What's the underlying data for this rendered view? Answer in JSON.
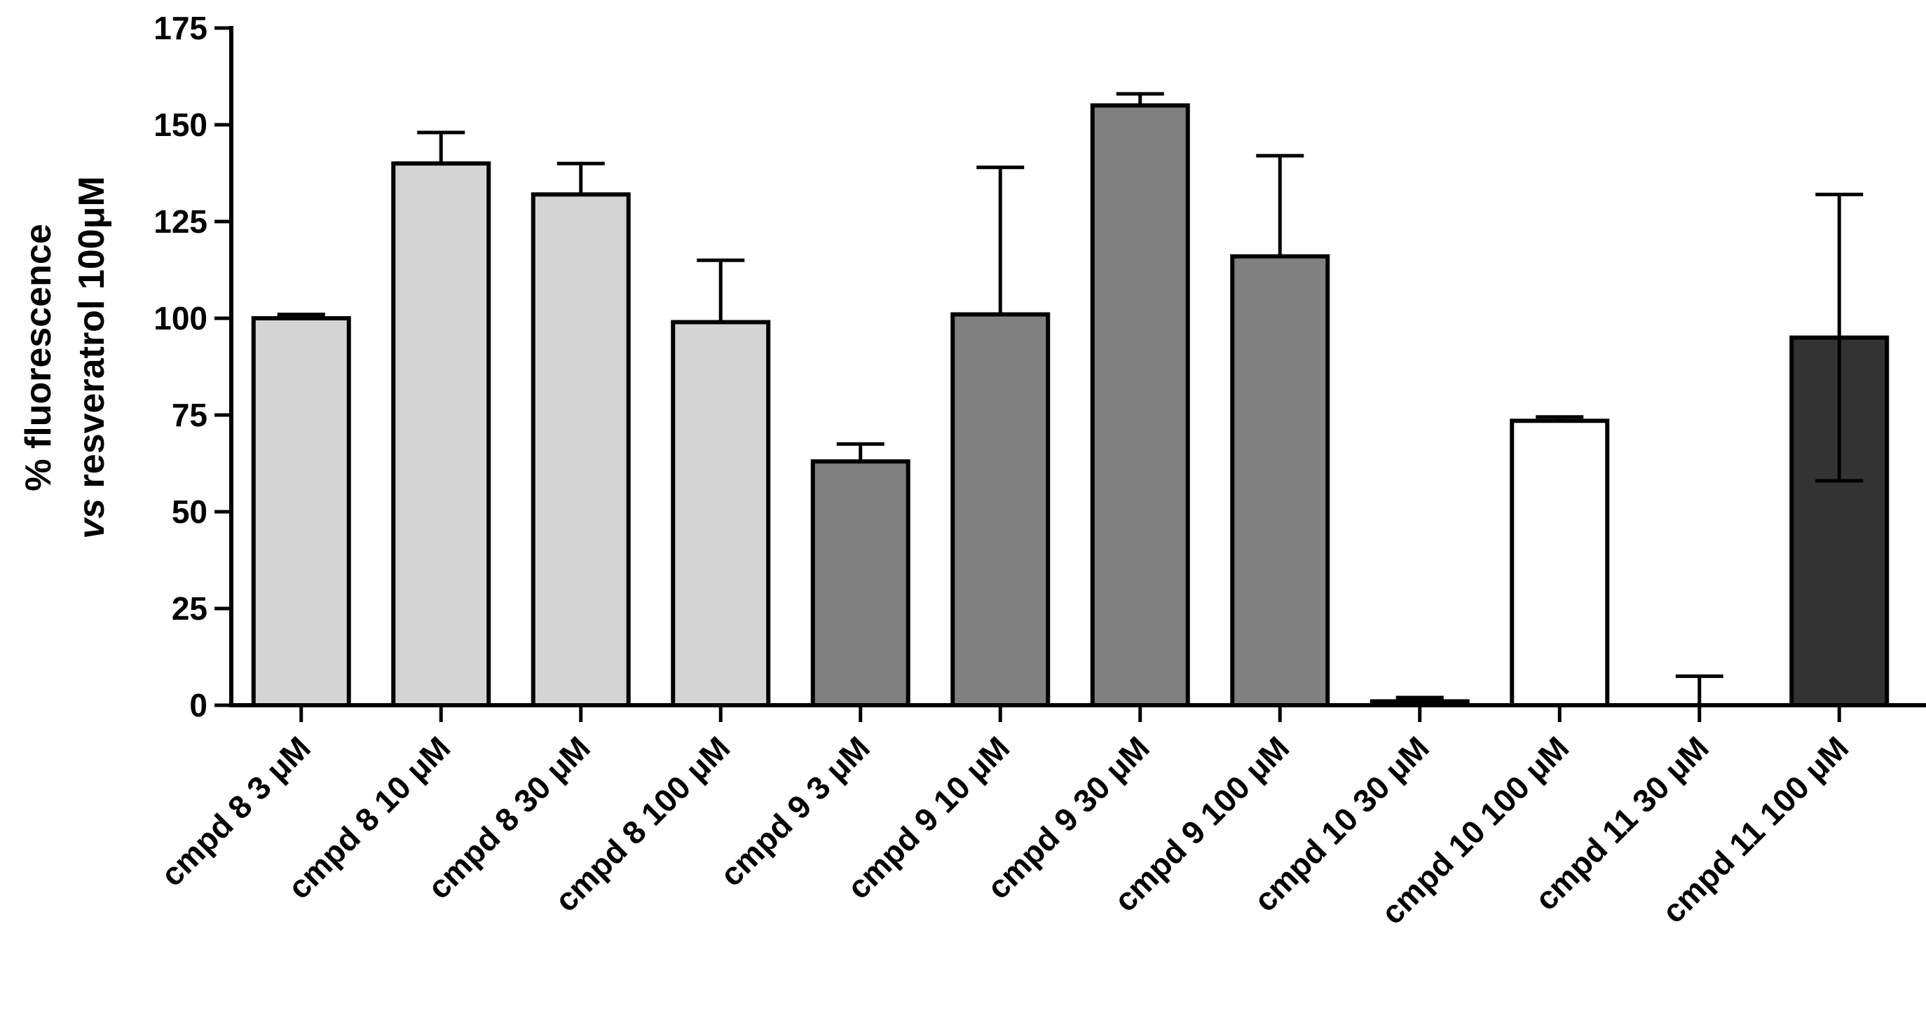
{
  "chart_data": {
    "type": "bar",
    "categories": [
      "cmpd 8 3 μM",
      "cmpd 8  10 μM",
      "cmpd 8  30 μM",
      "cmpd 8 100 μM",
      "cmpd 9 3 μM",
      "cmpd 9 10 μM",
      "cmpd 9  30 μM",
      "cmpd 9 100  μM",
      "cmpd 10 30 μM",
      "cmpd 10 100 μM",
      "cmpd 11  30 μM",
      "cmpd 11 100 μM"
    ],
    "values": [
      100,
      140,
      132,
      99,
      63,
      101,
      155,
      116,
      1,
      73.5,
      0,
      95
    ],
    "error_upper": [
      101,
      148,
      140,
      115,
      67.5,
      139,
      158,
      142,
      2,
      74.5,
      7.5,
      132
    ],
    "error_lower": [
      null,
      null,
      null,
      null,
      null,
      null,
      null,
      null,
      null,
      null,
      null,
      58
    ],
    "bar_colors": [
      "#d4d4d4",
      "#d4d4d4",
      "#d4d4d4",
      "#d4d4d4",
      "#808080",
      "#808080",
      "#808080",
      "#808080",
      "#ffffff",
      "#ffffff",
      "#ffffff",
      "#333333"
    ],
    "ylabel_line1": "% fluorescence",
    "ylabel_line2_italic": "vs",
    "ylabel_line2_rest": " resveratrol 100μM",
    "ylim": [
      0,
      175
    ],
    "yticks": [
      0,
      25,
      50,
      75,
      100,
      125,
      150,
      175
    ],
    "grid": false,
    "legend": "none"
  }
}
